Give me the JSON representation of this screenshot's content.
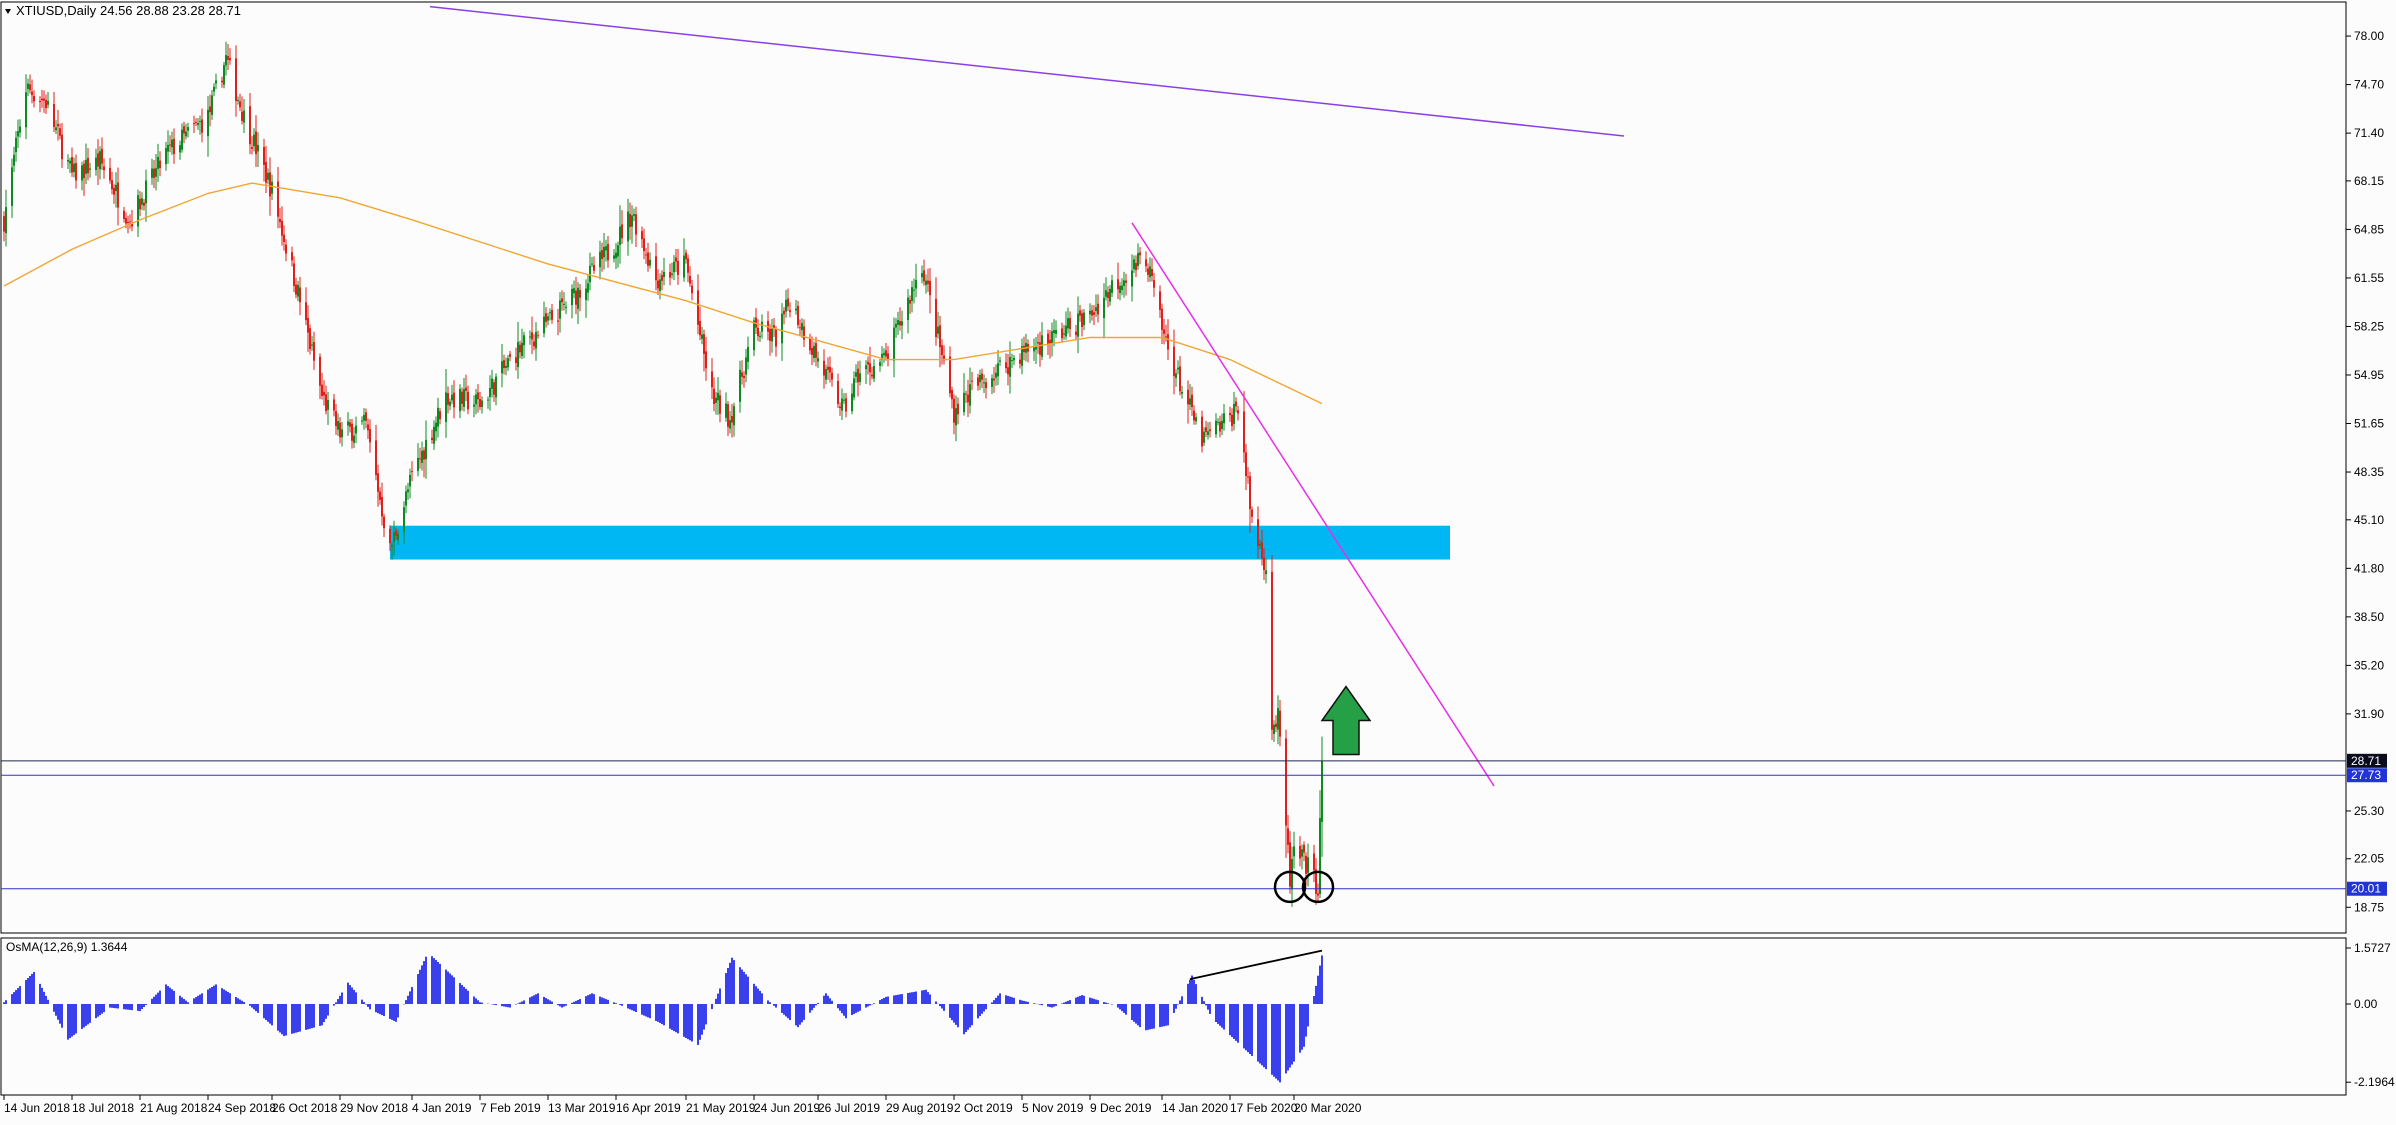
{
  "header": {
    "symbol": "XTIUSD,Daily",
    "ohlc": "24.56 28.88 23.28 28.71",
    "indicator_label": "OsMA(12,26,9) 1.3644"
  },
  "colors": {
    "background": "#fcfcfc",
    "candle_up": "#0f8a22",
    "candle_down": "#e0201a",
    "ma": "#f2a632",
    "support_zone": "#00b7f3",
    "long_trendline": "#8a3ee6",
    "short_trendline": "#e62ee6",
    "hist": "#0a12e8",
    "price_line": "#1a237e",
    "arrow": "#25a046"
  },
  "chart_data": [
    {
      "type": "candlestick",
      "title": "XTIUSD,Daily",
      "ylim": [
        17.0,
        79.5
      ],
      "y_ticks": [
        "78.00",
        "74.70",
        "71.40",
        "68.15",
        "64.85",
        "61.55",
        "58.25",
        "54.95",
        "51.65",
        "48.35",
        "45.10",
        "41.80",
        "38.50",
        "35.20",
        "31.90",
        "25.30",
        "22.05",
        "18.75"
      ],
      "x_ticks": [
        "14 Jun 2018",
        "18 Jul 2018",
        "21 Aug 2018",
        "24 Sep 2018",
        "26 Oct 2018",
        "29 Nov 2018",
        "4 Jan 2019",
        "7 Feb 2019",
        "13 Mar 2019",
        "16 Apr 2019",
        "21 May 2019",
        "24 Jun 2019",
        "26 Jul 2019",
        "29 Aug 2019",
        "2 Oct 2019",
        "5 Nov 2019",
        "9 Dec 2019",
        "14 Jan 2020",
        "17 Feb 2020",
        "20 Mar 2020"
      ],
      "price_labels": [
        {
          "value": 28.71,
          "label": "28.71",
          "style": "dark"
        },
        {
          "value": 27.73,
          "label": "27.73",
          "style": "blue"
        },
        {
          "value": 20.01,
          "label": "20.01",
          "style": "blue"
        }
      ],
      "closes_anchors": [
        [
          "14 Jun 2018",
          65.5
        ],
        [
          "25 Jun 2018",
          74.5
        ],
        [
          "5 Jul 2018",
          73.5
        ],
        [
          "18 Jul 2018",
          68.5
        ],
        [
          "1 Aug 2018",
          69.5
        ],
        [
          "16 Aug 2018",
          65.5
        ],
        [
          "3 Sep 2018",
          70.0
        ],
        [
          "24 Sep 2018",
          72.5
        ],
        [
          "3 Oct 2018",
          76.5
        ],
        [
          "12 Oct 2018",
          72.5
        ],
        [
          "26 Oct 2018",
          67.5
        ],
        [
          "9 Nov 2018",
          60.0
        ],
        [
          "20 Nov 2018",
          53.5
        ],
        [
          "29 Nov 2018",
          51.0
        ],
        [
          "12 Dec 2018",
          51.5
        ],
        [
          "24 Dec 2018",
          43.0
        ],
        [
          "4 Jan 2019",
          48.0
        ],
        [
          "21 Jan 2019",
          53.5
        ],
        [
          "7 Feb 2019",
          53.0
        ],
        [
          "25 Feb 2019",
          56.5
        ],
        [
          "13 Mar 2019",
          58.5
        ],
        [
          "27 Mar 2019",
          60.5
        ],
        [
          "16 Apr 2019",
          64.0
        ],
        [
          "24 Apr 2019",
          66.0
        ],
        [
          "6 May 2019",
          61.5
        ],
        [
          "21 May 2019",
          62.5
        ],
        [
          "3 Jun 2019",
          53.5
        ],
        [
          "12 Jun 2019",
          52.0
        ],
        [
          "24 Jun 2019",
          58.0
        ],
        [
          "5 Jul 2019",
          57.5
        ],
        [
          "12 Jul 2019",
          60.0
        ],
        [
          "26 Jul 2019",
          56.0
        ],
        [
          "8 Aug 2019",
          52.5
        ],
        [
          "15 Aug 2019",
          55.0
        ],
        [
          "29 Aug 2019",
          56.0
        ],
        [
          "16 Sep 2019",
          62.5
        ],
        [
          "2 Oct 2019",
          52.5
        ],
        [
          "11 Oct 2019",
          54.0
        ],
        [
          "5 Nov 2019",
          56.5
        ],
        [
          "20 Nov 2019",
          57.5
        ],
        [
          "9 Dec 2019",
          59.0
        ],
        [
          "20 Dec 2019",
          61.0
        ],
        [
          "6 Jan 2020",
          63.0
        ],
        [
          "14 Jan 2020",
          58.0
        ],
        [
          "24 Jan 2020",
          54.0
        ],
        [
          "3 Feb 2020",
          50.5
        ],
        [
          "17 Feb 2020",
          52.0
        ],
        [
          "21 Feb 2020",
          53.0
        ],
        [
          "28 Feb 2020",
          45.0
        ],
        [
          "6 Mar 2020",
          42.0
        ],
        [
          "9 Mar 2020",
          31.0
        ],
        [
          "12 Mar 2020",
          31.5
        ],
        [
          "18 Mar 2020",
          20.6
        ],
        [
          "20 Mar 2020",
          22.5
        ],
        [
          "27 Mar 2020",
          21.5
        ],
        [
          "1 Apr 2020",
          20.1
        ],
        [
          "2 Apr 2020",
          24.5
        ],
        [
          "3 Apr 2020",
          28.71
        ]
      ],
      "ma_anchors": [
        [
          "14 Jun 2018",
          61.0
        ],
        [
          "18 Jul 2018",
          63.5
        ],
        [
          "21 Aug 2018",
          65.5
        ],
        [
          "24 Sep 2018",
          67.3
        ],
        [
          "16 Oct 2018",
          68.0
        ],
        [
          "29 Nov 2018",
          67.0
        ],
        [
          "4 Jan 2019",
          65.5
        ],
        [
          "13 Mar 2019",
          62.5
        ],
        [
          "21 May 2019",
          60.0
        ],
        [
          "24 Jun 2019",
          58.5
        ],
        [
          "29 Aug 2019",
          56.0
        ],
        [
          "2 Oct 2019",
          56.0
        ],
        [
          "9 Dec 2019",
          57.5
        ],
        [
          "14 Jan 2020",
          57.5
        ],
        [
          "17 Feb 2020",
          56.0
        ],
        [
          "3 Apr 2020",
          53.0
        ]
      ],
      "support_zone": {
        "x_start": "24 Dec 2018",
        "x_end": "6 Jun 2020",
        "low": 42.4,
        "high": 44.7
      },
      "long_trendline": [
        [
          "13 Jan 2019",
          80.0
        ],
        [
          "1 Sep 2020",
          71.2
        ]
      ],
      "short_trendline": [
        [
          "30 Dec 2019",
          65.3
        ],
        [
          "28 Jun 2020",
          27.0
        ]
      ],
      "annotations": [
        {
          "type": "circle",
          "x": "18 Mar 2020",
          "y": 20.0
        },
        {
          "type": "circle",
          "x": "1 Apr 2020",
          "y": 20.0
        },
        {
          "type": "arrow_up",
          "x": "15 Apr 2020",
          "y": 29.0
        }
      ]
    },
    {
      "type": "histogram",
      "title": "OsMA(12,26,9) 1.3644",
      "ylim": [
        -2.3,
        1.6
      ],
      "y_ticks": [
        "1.5727",
        "0.00",
        "-2.1964"
      ],
      "last_value": 1.3644,
      "anchors": [
        [
          "14 Jun 2018",
          0.05
        ],
        [
          "29 Jun 2018",
          0.9
        ],
        [
          "16 Jul 2018",
          -1.0
        ],
        [
          "6 Aug 2018",
          -0.1
        ],
        [
          "21 Aug 2018",
          -0.2
        ],
        [
          "3 Sep 2018",
          0.55
        ],
        [
          "14 Sep 2018",
          0.05
        ],
        [
          "28 Sep 2018",
          0.55
        ],
        [
          "15 Oct 2018",
          -0.05
        ],
        [
          "1 Nov 2018",
          -0.9
        ],
        [
          "20 Nov 2018",
          -0.6
        ],
        [
          "3 Dec 2018",
          0.6
        ],
        [
          "14 Dec 2018",
          -0.15
        ],
        [
          "27 Dec 2018",
          -0.5
        ],
        [
          "12 Jan 2019",
          1.45
        ],
        [
          "7 Feb 2019",
          0.05
        ],
        [
          "22 Feb 2019",
          -0.1
        ],
        [
          "8 Mar 2019",
          0.3
        ],
        [
          "20 Mar 2019",
          -0.1
        ],
        [
          "4 Apr 2019",
          0.3
        ],
        [
          "17 Apr 2019",
          0.0
        ],
        [
          "7 May 2019",
          -0.5
        ],
        [
          "27 May 2019",
          -1.15
        ],
        [
          "13 Jun 2019",
          1.3
        ],
        [
          "1 Jul 2019",
          0.1
        ],
        [
          "16 Jul 2019",
          -0.65
        ],
        [
          "30 Jul 2019",
          0.3
        ],
        [
          "9 Aug 2019",
          -0.4
        ],
        [
          "29 Aug 2019",
          0.2
        ],
        [
          "18 Sep 2019",
          0.4
        ],
        [
          "7 Oct 2019",
          -0.85
        ],
        [
          "25 Oct 2019",
          0.3
        ],
        [
          "5 Nov 2019",
          0.1
        ],
        [
          "20 Nov 2019",
          -0.1
        ],
        [
          "5 Dec 2019",
          0.25
        ],
        [
          "22 Dec 2019",
          -0.05
        ],
        [
          "5 Jan 2020",
          -0.75
        ],
        [
          "17 Jan 2020",
          -0.6
        ],
        [
          "29 Jan 2020",
          0.8
        ],
        [
          "8 Feb 2020",
          -0.4
        ],
        [
          "13 Mar 2020",
          -2.2
        ],
        [
          "25 Mar 2020",
          -1.2
        ],
        [
          "3 Apr 2020",
          1.3644
        ]
      ],
      "divergence_line": [
        [
          "28 Jan 2020",
          0.7
        ],
        [
          "3 Apr 2020",
          1.5
        ]
      ]
    }
  ]
}
